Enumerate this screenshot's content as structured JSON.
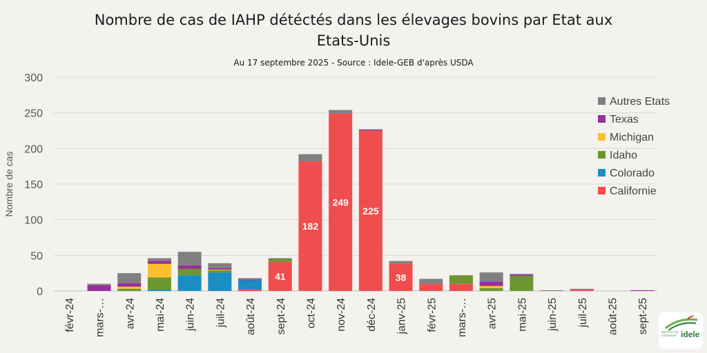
{
  "chart_data": {
    "type": "bar",
    "stacked": true,
    "title_line1": "Nombre de cas de IAHP détéctés dans les élevages bovins par Etat aux",
    "title_line2": "Etats-Unis",
    "subtitle": "Au 17 septembre 2025 - Source : Idele-GEB d'après USDA",
    "ylabel": "Nombre de cas",
    "ylim": [
      0,
      300
    ],
    "yticks": [
      "0",
      "50",
      "100",
      "150",
      "200",
      "250",
      "300"
    ],
    "grid": true,
    "legend_position": "right",
    "categories": [
      "févr-24",
      "mars-…",
      "avr-24",
      "mai-24",
      "juin-24",
      "juil-24",
      "août-24",
      "sept-24",
      "oct-24",
      "nov-24",
      "déc-24",
      "janv-25",
      "févr-25",
      "mars-…",
      "avr-25",
      "mai-25",
      "juin-25",
      "juil-25",
      "août-25",
      "sept-25"
    ],
    "series": [
      {
        "name": "Californie",
        "color": "#f04d4f",
        "values": [
          0,
          0,
          0,
          0,
          0,
          0,
          2,
          41,
          182,
          249,
          225,
          38,
          10,
          10,
          0,
          0,
          0,
          2,
          0,
          0
        ]
      },
      {
        "name": "Colorado",
        "color": "#1a8ec3",
        "values": [
          0,
          0,
          0,
          2,
          22,
          26,
          13,
          0,
          0,
          0,
          0,
          0,
          0,
          0,
          0,
          0,
          0,
          0,
          0,
          0
        ]
      },
      {
        "name": "Idaho",
        "color": "#6b9630",
        "values": [
          0,
          0,
          3,
          17,
          9,
          3,
          0,
          4,
          0,
          0,
          0,
          0,
          0,
          12,
          4,
          21,
          0,
          0,
          0,
          0
        ]
      },
      {
        "name": "Michigan",
        "color": "#fcc02e",
        "values": [
          0,
          0,
          3,
          19,
          0,
          1,
          0,
          0,
          0,
          0,
          0,
          0,
          0,
          0,
          3,
          0,
          0,
          0,
          0,
          0
        ]
      },
      {
        "name": "Texas",
        "color": "#9b2e9d",
        "values": [
          0,
          8,
          5,
          4,
          5,
          2,
          1,
          0,
          0,
          0,
          1,
          0,
          0,
          0,
          6,
          2,
          0,
          0,
          0,
          1
        ]
      },
      {
        "name": "Autres Etats",
        "color": "#808080",
        "values": [
          0,
          2,
          14,
          4,
          19,
          7,
          2,
          1,
          10,
          5,
          1,
          4,
          7,
          0,
          13,
          1,
          1,
          1,
          0,
          0
        ]
      }
    ],
    "data_labels": [
      {
        "category": "sept-24",
        "series": "Californie",
        "text": "41"
      },
      {
        "category": "oct-24",
        "series": "Californie",
        "text": "182"
      },
      {
        "category": "nov-24",
        "series": "Californie",
        "text": "249"
      },
      {
        "category": "déc-24",
        "series": "Californie",
        "text": "225"
      },
      {
        "category": "janv-25",
        "series": "Californie",
        "text": "38"
      }
    ]
  },
  "logo": {
    "name": "idele",
    "text": "idele",
    "small_text": "INSTITUT DE L'ÉLEVAGE"
  }
}
